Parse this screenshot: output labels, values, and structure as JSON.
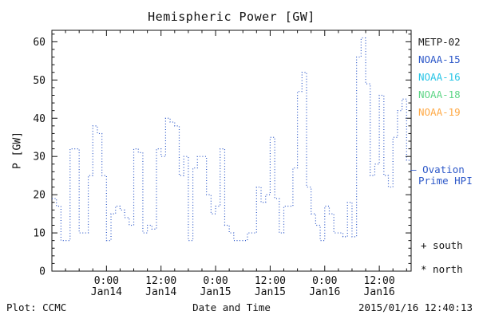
{
  "title": "Hemispheric Power [GW]",
  "axes": {
    "ylabel": "P [GW]",
    "xlabel": "Date and Time",
    "yticks": [
      0,
      10,
      20,
      30,
      40,
      50,
      60
    ],
    "xticks": [
      {
        "time": "0:00",
        "date": "Jan14",
        "hour": 12
      },
      {
        "time": "12:00",
        "date": "Jan14",
        "hour": 24
      },
      {
        "time": "0:00",
        "date": "Jan15",
        "hour": 36
      },
      {
        "time": "12:00",
        "date": "Jan15",
        "hour": 48
      },
      {
        "time": "0:00",
        "date": "Jan16",
        "hour": 60
      },
      {
        "time": "12:00",
        "date": "Jan16",
        "hour": 72
      }
    ]
  },
  "legend": {
    "satellites": [
      {
        "label": "METP-02",
        "color": "#1a1a1a"
      },
      {
        "label": "NOAA-15",
        "color": "#2e59c9"
      },
      {
        "label": "NOAA-16",
        "color": "#29c5e6"
      },
      {
        "label": "NOAA-18",
        "color": "#5fd687"
      },
      {
        "label": "NOAA-19",
        "color": "#ffaa47"
      }
    ],
    "ovation_marker": "—",
    "ovation_line1": "Ovation",
    "ovation_line2": "Prime HPI",
    "ovation_color": "#2e59c9",
    "south_marker": "+ south",
    "north_marker": "* north"
  },
  "footer": {
    "plot_credit": "Plot: CCMC",
    "timestamp": "2015/01/16 12:40:13"
  },
  "chart_data": {
    "type": "line",
    "style": "dotted-step",
    "title": "Hemispheric Power [GW]",
    "xlabel": "Date and Time",
    "ylabel": "P [GW]",
    "line_color": "#2e59c9",
    "ylim": [
      0,
      63
    ],
    "x_unit": "hours from plot start (hourly steps)",
    "xlim_hours": [
      0,
      79
    ],
    "tick_hours": [
      12,
      24,
      36,
      48,
      60,
      72
    ],
    "values": [
      19,
      17,
      8,
      8,
      32,
      32,
      10,
      10,
      25,
      38,
      36,
      25,
      8,
      15,
      17,
      16,
      14,
      12,
      32,
      31,
      10,
      12,
      11,
      32,
      30,
      40,
      39,
      38,
      25,
      30,
      8,
      27,
      30,
      30,
      20,
      15,
      17,
      32,
      12,
      10,
      8,
      8,
      8,
      10,
      10,
      22,
      18,
      20,
      35,
      19,
      10,
      17,
      17,
      27,
      47,
      52,
      22,
      15,
      12,
      8,
      17,
      15,
      10,
      10,
      9,
      18,
      9,
      56,
      61,
      49,
      25,
      28,
      46,
      25,
      22,
      35,
      42,
      45,
      29
    ]
  }
}
